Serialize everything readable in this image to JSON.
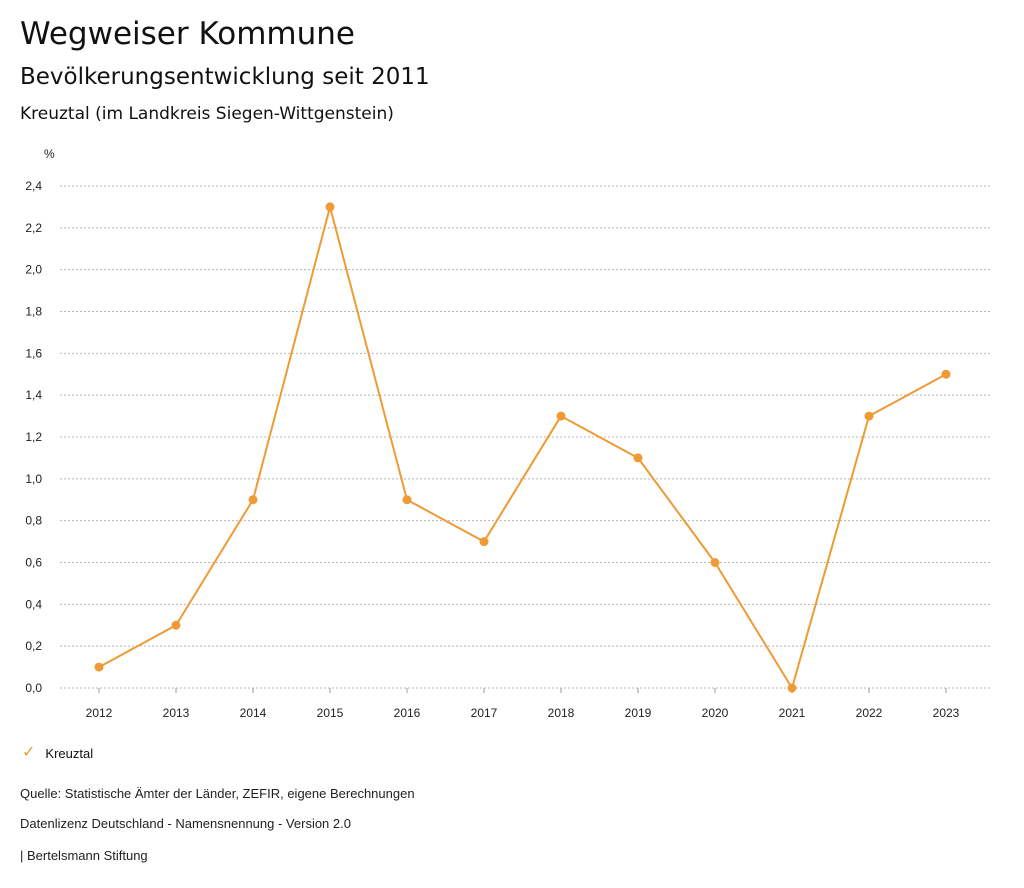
{
  "header": {
    "title": "Wegweiser Kommune",
    "subtitle": "Bevölkerungsentwicklung seit 2011",
    "place": "Kreuztal (im Landkreis Siegen-Wittgenstein)"
  },
  "chart_data": {
    "type": "line",
    "x": [
      "2012",
      "2013",
      "2014",
      "2015",
      "2016",
      "2017",
      "2018",
      "2019",
      "2020",
      "2021",
      "2022",
      "2023"
    ],
    "series": [
      {
        "name": "Kreuztal",
        "color": "#ef9a34",
        "values": [
          0.1,
          0.3,
          0.9,
          2.3,
          0.9,
          0.7,
          1.3,
          1.1,
          0.6,
          0.0,
          1.3,
          1.5
        ]
      }
    ],
    "ylabel": "%",
    "ylim": [
      0,
      2.4
    ],
    "yticks": [
      "0,0",
      "0,2",
      "0,4",
      "0,6",
      "0,8",
      "1,0",
      "1,2",
      "1,4",
      "1,6",
      "1,8",
      "2,0",
      "2,2",
      "2,4"
    ],
    "grid": true,
    "legend_position": "bottom-left"
  },
  "legend": {
    "icon": "check-icon",
    "label": "Kreuztal"
  },
  "footer": {
    "source": "Quelle: Statistische Ämter der Länder, ZEFIR, eigene Berechnungen",
    "license": "Datenlizenz Deutschland - Namensnennung - Version 2.0",
    "publisher": "| Bertelsmann Stiftung"
  }
}
